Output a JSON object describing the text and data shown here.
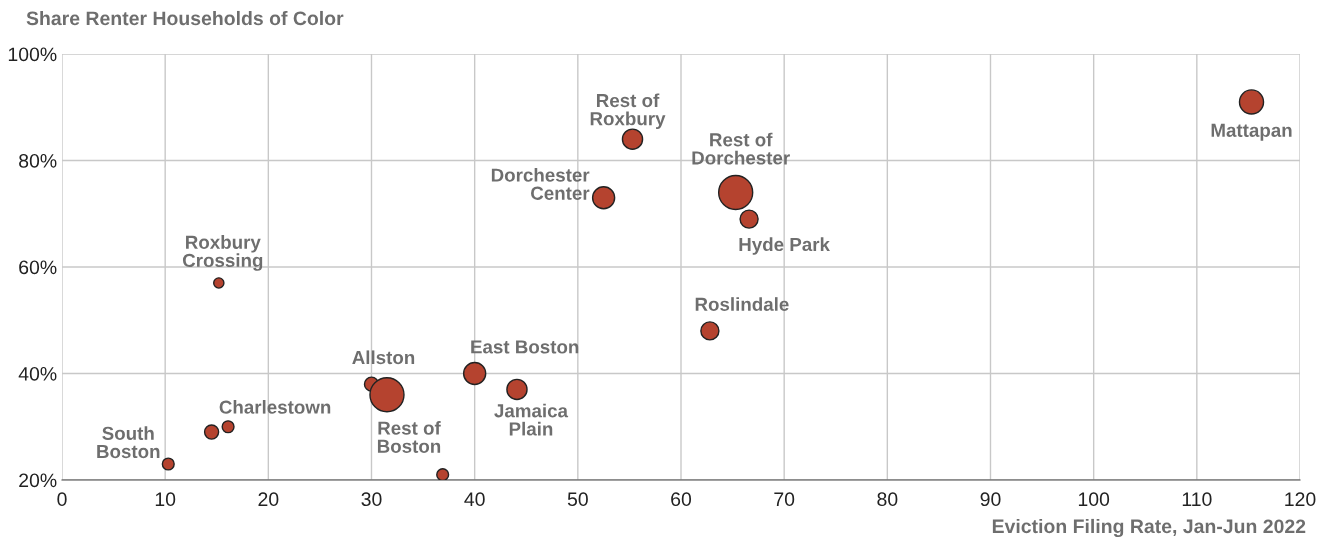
{
  "chart_data": {
    "type": "bubble",
    "ylabel": "Share Renter Households of Color",
    "xlabel": "Eviction Filing Rate, Jan-Jun 2022",
    "x": [
      115.3,
      55.3,
      52.5,
      65.3,
      66.6,
      62.8,
      40,
      44.1,
      30,
      31.5,
      15.2,
      16.1,
      10.3,
      14.5,
      36.9
    ],
    "values": [
      91,
      84,
      73,
      74,
      69,
      48,
      40,
      37,
      38,
      36,
      57,
      30,
      23,
      29,
      21
    ],
    "sizes": [
      0.5,
      0.35,
      0.42,
      1,
      0.28,
      0.28,
      0.42,
      0.35,
      0.17,
      1,
      0.09,
      0.12,
      0.12,
      0.17,
      0.12
    ],
    "colors": [
      "#b5432f",
      "#b5432f",
      "#b5432f",
      "#b5432f",
      "#b5432f",
      "#b5432f",
      "#b5432f",
      "#b5432f",
      "#b5432f",
      "#b5432f",
      "#b5432f",
      "#b5432f",
      "#b5432f",
      "#b5432f",
      "#b5432f"
    ],
    "value_labels": [
      "Mattapan",
      "Rest of\nRoxbury",
      "Dorchester\nCenter",
      "Rest of\nDorchester",
      "Hyde Park",
      "Roslindale",
      "East Boston",
      "Jamaica\nPlain",
      "Allston",
      "Rest of\nBoston",
      "Roxbury\nCrossing",
      "Charlestown",
      "South\nBoston",
      null,
      null
    ],
    "xlim": [
      0,
      120
    ],
    "xticks": [
      0,
      10,
      20,
      30,
      40,
      50,
      60,
      70,
      80,
      90,
      100,
      110,
      120
    ],
    "ylim": [
      20,
      100
    ],
    "yticks": [
      {
        "value": 20,
        "label": "20%"
      },
      {
        "value": 40,
        "label": "40%"
      },
      {
        "value": 60,
        "label": "60%"
      },
      {
        "value": 80,
        "label": "80%"
      },
      {
        "value": 100,
        "label": "100%"
      }
    ],
    "grid": true
  }
}
